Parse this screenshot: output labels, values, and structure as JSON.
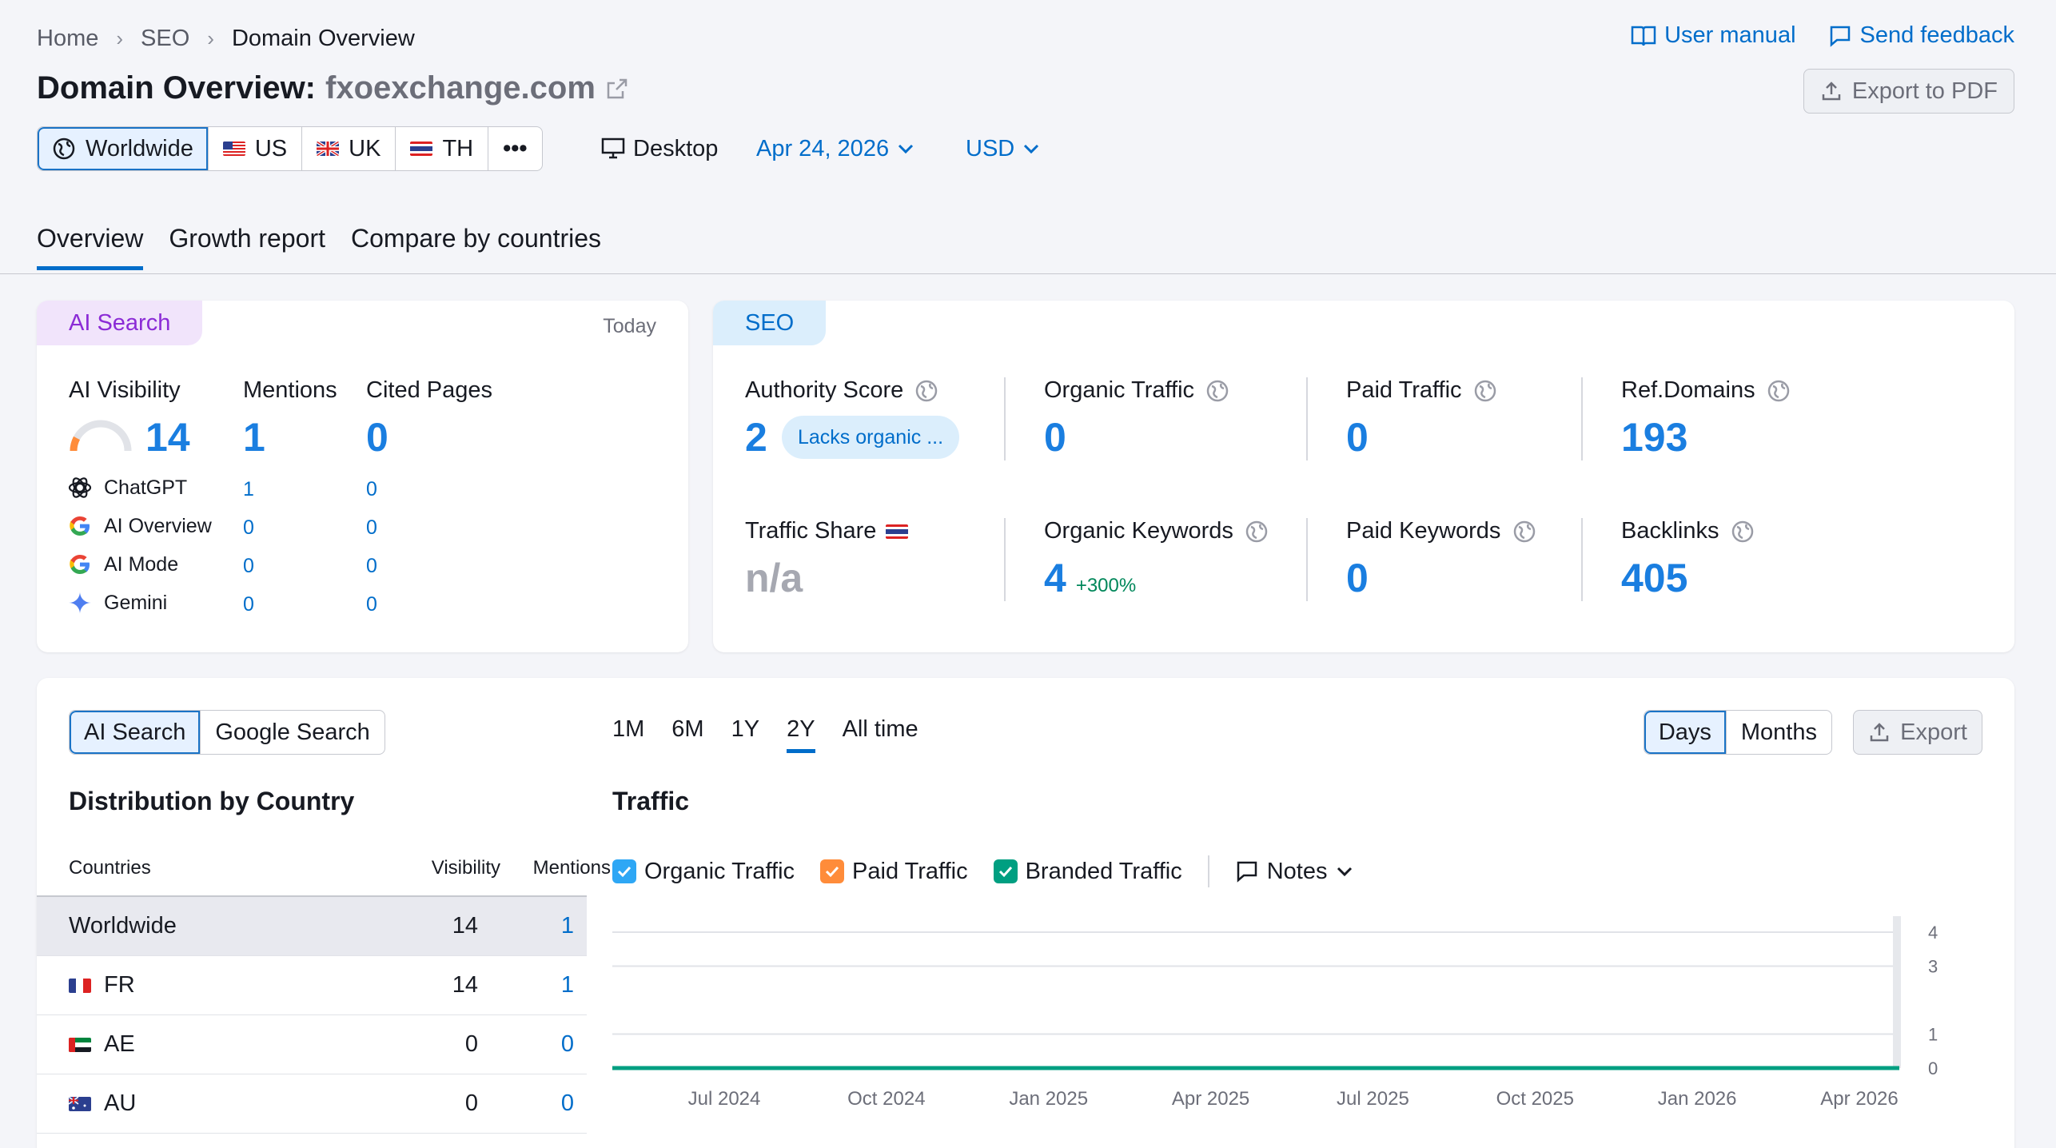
{
  "breadcrumb": [
    "Home",
    "SEO",
    "Domain Overview"
  ],
  "top_links": {
    "manual": "User manual",
    "feedback": "Send feedback"
  },
  "title": {
    "prefix": "Domain Overview:",
    "domain": "fxoexchange.com"
  },
  "export_pdf": "Export to PDF",
  "databases": [
    {
      "label": "Worldwide",
      "icon": "globe-icon"
    },
    {
      "label": "US",
      "icon": "us-flag-icon"
    },
    {
      "label": "UK",
      "icon": "uk-flag-icon"
    },
    {
      "label": "TH",
      "icon": "th-flag-icon"
    },
    {
      "label": "•••",
      "icon": "more-icon"
    }
  ],
  "device": "Desktop",
  "date": "Apr 24, 2026",
  "currency": "USD",
  "tabs": [
    "Overview",
    "Growth report",
    "Compare by countries"
  ],
  "ai_card": {
    "tag": "AI Search",
    "date": "Today",
    "col_visibility": "AI Visibility",
    "col_mentions": "Mentions",
    "col_cited": "Cited Pages",
    "visibility": "14",
    "mentions": "1",
    "cited": "0",
    "rows": [
      {
        "name": "ChatGPT",
        "mentions": "1",
        "cited": "0"
      },
      {
        "name": "AI Overview",
        "mentions": "0",
        "cited": "0"
      },
      {
        "name": "AI Mode",
        "mentions": "0",
        "cited": "0"
      },
      {
        "name": "Gemini",
        "mentions": "0",
        "cited": "0"
      }
    ]
  },
  "seo_card": {
    "tag": "SEO",
    "authority_label": "Authority Score",
    "authority_value": "2",
    "authority_badge": "Lacks organic ...",
    "organic_traffic_label": "Organic Traffic",
    "organic_traffic_value": "0",
    "paid_traffic_label": "Paid Traffic",
    "paid_traffic_value": "0",
    "ref_domains_label": "Ref.Domains",
    "ref_domains_value": "193",
    "traffic_share_label": "Traffic Share",
    "traffic_share_value": "n/a",
    "organic_kw_label": "Organic Keywords",
    "organic_kw_value": "4",
    "organic_kw_change": "+300%",
    "paid_kw_label": "Paid Keywords",
    "paid_kw_value": "0",
    "backlinks_label": "Backlinks",
    "backlinks_value": "405"
  },
  "bottom": {
    "search_toggle": [
      "AI Search",
      "Google Search"
    ],
    "ranges": [
      "1M",
      "6M",
      "1Y",
      "2Y",
      "All time"
    ],
    "granularity": [
      "Days",
      "Months"
    ],
    "export": "Export",
    "dist_title": "Distribution by Country",
    "dist_headers": {
      "country": "Countries",
      "visibility": "Visibility",
      "mentions": "Mentions"
    },
    "dist_rows": [
      {
        "country": "Worldwide",
        "visibility": "14",
        "mentions": "1"
      },
      {
        "country": "FR",
        "visibility": "14",
        "mentions": "1"
      },
      {
        "country": "AE",
        "visibility": "0",
        "mentions": "0"
      },
      {
        "country": "AU",
        "visibility": "0",
        "mentions": "0"
      }
    ],
    "traffic_title": "Traffic",
    "legend": [
      "Organic Traffic",
      "Paid Traffic",
      "Branded Traffic"
    ],
    "notes": "Notes"
  },
  "colors": {
    "accent": "#006dca",
    "organic": "#2ea7f5",
    "paid": "#ff8c3a",
    "branded": "#009f81"
  },
  "chart_data": {
    "type": "line",
    "x": [
      "Jul 2024",
      "Oct 2024",
      "Jan 2025",
      "Apr 2025",
      "Jul 2025",
      "Oct 2025",
      "Jan 2026",
      "Apr 2026"
    ],
    "y_ticks": [
      "4",
      "3",
      "1",
      "0"
    ],
    "ylim": [
      0,
      4
    ],
    "series": [
      {
        "name": "Branded Traffic",
        "values": [
          0,
          0,
          0,
          0,
          0,
          0,
          0,
          0
        ]
      }
    ],
    "grid": true
  }
}
